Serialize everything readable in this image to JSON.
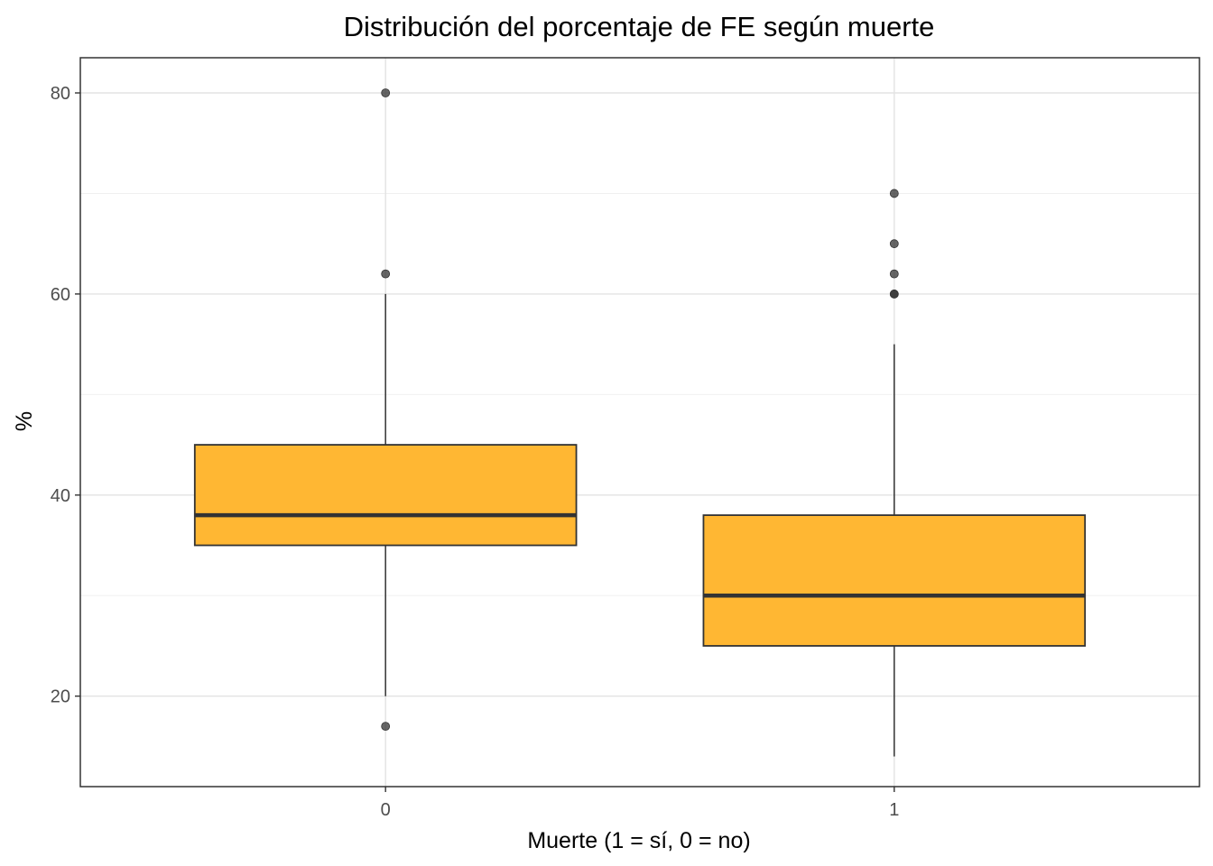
{
  "chart_data": {
    "type": "boxplot",
    "title": "Distribución del porcentaje de FE según muerte",
    "xlabel": "Muerte (1 = sí, 0 = no)",
    "ylabel": "%",
    "ylim": [
      11,
      83.5
    ],
    "y_ticks": [
      20,
      40,
      60,
      80
    ],
    "y_minor_ticks": [
      30,
      50,
      70
    ],
    "grid": true,
    "legend": "none",
    "box_fill_color": "#FFB733",
    "box_edge_color": "#333333",
    "outlier_color": "#333333",
    "categories": [
      "0",
      "1"
    ],
    "boxes": [
      {
        "category": "0",
        "whisker_low": 20,
        "q1": 35,
        "median": 38,
        "q3": 45,
        "whisker_high": 60,
        "outliers": [
          80,
          62,
          17
        ]
      },
      {
        "category": "1",
        "whisker_low": 14,
        "q1": 25,
        "median": 30,
        "q3": 38,
        "whisker_high": 55,
        "outliers": [
          70,
          65,
          62,
          60,
          60
        ]
      }
    ]
  }
}
